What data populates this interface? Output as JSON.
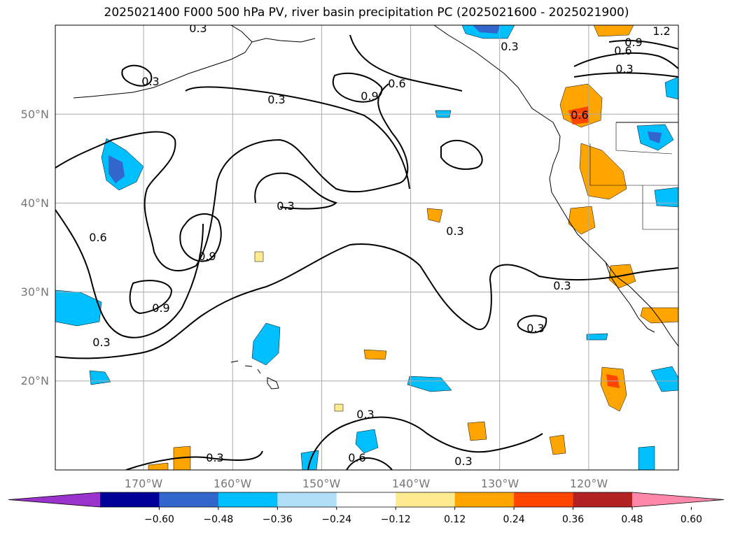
{
  "title": "2025021400 F000 500 hPa PV, river basin precipitation PC (2025021600 - 2025021900)",
  "map": {
    "projection": "PlateCarree",
    "lon_range": [
      -180,
      -110
    ],
    "lat_range": [
      10,
      60
    ],
    "grid": true,
    "lat_ticks": [
      {
        "value": 20,
        "label": "20°N"
      },
      {
        "value": 30,
        "label": "30°N"
      },
      {
        "value": 40,
        "label": "40°N"
      },
      {
        "value": 50,
        "label": "50°N"
      }
    ],
    "lon_ticks": [
      {
        "value": -170,
        "label": "170°W"
      },
      {
        "value": -160,
        "label": "160°W"
      },
      {
        "value": -150,
        "label": "150°W"
      },
      {
        "value": -140,
        "label": "140°W"
      },
      {
        "value": -130,
        "label": "130°W"
      },
      {
        "value": -120,
        "label": "120°W"
      }
    ],
    "contour_labels": [
      "0.3",
      "0.6",
      "0.9",
      "1.2"
    ]
  },
  "colorbar": {
    "extend": "both",
    "colors": [
      "#9933cc",
      "#000099",
      "#3366cc",
      "#00bfff",
      "#b0e0f8",
      "#ffffff",
      "#ffeb8f",
      "#ffa500",
      "#ff4500",
      "#b22222",
      "#ff88aa"
    ],
    "tick_labels": [
      "-0.60",
      "-0.48",
      "-0.36",
      "-0.24",
      "-0.12",
      "0.12",
      "0.24",
      "0.36",
      "0.48",
      "0.60"
    ]
  }
}
